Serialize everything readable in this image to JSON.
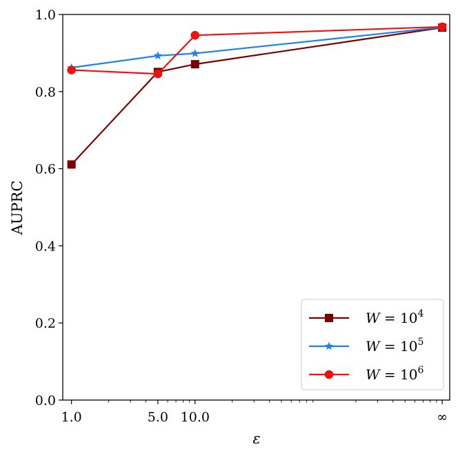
{
  "chart_data": {
    "type": "line",
    "xscale": "log",
    "title": "",
    "xlabel": "ε",
    "ylabel": "AUPRC",
    "ylim": [
      0.0,
      1.0
    ],
    "yticks": [
      "0.0",
      "0.2",
      "0.4",
      "0.6",
      "0.8",
      "1.0"
    ],
    "x": [
      1.0,
      5.0,
      10.0,
      1000.0
    ],
    "xtick_labels": [
      "1.0",
      "5.0",
      "10.0",
      "∞"
    ],
    "grid": false,
    "legend_position": "lower-right",
    "series": [
      {
        "name": "W = 10^4",
        "label_base": "W = 10",
        "label_exp": "4",
        "color": "#7a0000",
        "marker": "square",
        "values": [
          0.611,
          0.851,
          0.871,
          0.966
        ]
      },
      {
        "name": "W = 10^5",
        "label_base": "W = 10",
        "label_exp": "5",
        "color": "#1a80ee",
        "marker": "star",
        "values": [
          0.862,
          0.893,
          0.899,
          0.967
        ]
      },
      {
        "name": "W = 10^6",
        "label_base": "W = 10",
        "label_exp": "6",
        "color": "#ee1111",
        "marker": "circle",
        "values": [
          0.856,
          0.846,
          0.946,
          0.968
        ]
      }
    ]
  }
}
